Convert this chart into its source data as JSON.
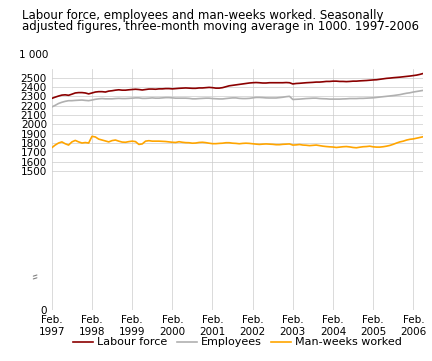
{
  "title_line1": "Labour force, employees and man-weeks worked. Seasonally",
  "title_line2": "adjusted figures, three-month moving average in 1000. 1997-2006",
  "ylabel_top": "1 000",
  "yticks": [
    0,
    1500,
    1600,
    1700,
    1800,
    1900,
    2000,
    2100,
    2200,
    2300,
    2400,
    2500
  ],
  "ymin": 0,
  "ymax": 2600,
  "xtick_labels": [
    "Feb.\n1997",
    "Feb.\n1998",
    "Feb.\n1999",
    "Feb.\n2000",
    "Feb.\n2001",
    "Feb.\n2002",
    "Feb.\n2003",
    "Feb.\n2004",
    "Feb.\n2005",
    "Feb.\n2006"
  ],
  "labour_force": [
    2280,
    2293,
    2305,
    2315,
    2318,
    2313,
    2325,
    2338,
    2342,
    2342,
    2338,
    2328,
    2338,
    2348,
    2352,
    2352,
    2348,
    2358,
    2362,
    2368,
    2372,
    2368,
    2368,
    2372,
    2375,
    2378,
    2375,
    2370,
    2375,
    2380,
    2380,
    2378,
    2382,
    2382,
    2385,
    2385,
    2382,
    2385,
    2388,
    2390,
    2392,
    2390,
    2388,
    2388,
    2392,
    2392,
    2395,
    2398,
    2395,
    2390,
    2390,
    2395,
    2405,
    2415,
    2420,
    2425,
    2430,
    2435,
    2440,
    2445,
    2448,
    2450,
    2448,
    2445,
    2445,
    2448,
    2448,
    2448,
    2448,
    2448,
    2450,
    2448,
    2435,
    2440,
    2442,
    2445,
    2448,
    2450,
    2452,
    2455,
    2455,
    2458,
    2462,
    2462,
    2465,
    2465,
    2462,
    2462,
    2460,
    2462,
    2465,
    2465,
    2468,
    2470,
    2472,
    2475,
    2478,
    2480,
    2485,
    2490,
    2495,
    2498,
    2502,
    2505,
    2508,
    2512,
    2516,
    2520,
    2525,
    2530,
    2538,
    2548
  ],
  "employees": [
    2188,
    2205,
    2225,
    2238,
    2248,
    2255,
    2255,
    2258,
    2260,
    2262,
    2258,
    2255,
    2262,
    2270,
    2275,
    2278,
    2275,
    2275,
    2275,
    2278,
    2280,
    2278,
    2278,
    2280,
    2282,
    2285,
    2285,
    2280,
    2280,
    2282,
    2285,
    2282,
    2282,
    2285,
    2288,
    2288,
    2285,
    2282,
    2282,
    2282,
    2282,
    2280,
    2275,
    2275,
    2278,
    2280,
    2282,
    2282,
    2278,
    2276,
    2274,
    2274,
    2278,
    2282,
    2285,
    2285,
    2280,
    2278,
    2278,
    2280,
    2285,
    2290,
    2290,
    2288,
    2285,
    2284,
    2284,
    2284,
    2288,
    2292,
    2298,
    2302,
    2268,
    2270,
    2272,
    2275,
    2278,
    2280,
    2282,
    2282,
    2278,
    2276,
    2275,
    2272,
    2272,
    2272,
    2272,
    2274,
    2275,
    2278,
    2278,
    2278,
    2280,
    2280,
    2282,
    2284,
    2286,
    2290,
    2294,
    2298,
    2302,
    2306,
    2310,
    2315,
    2320,
    2328,
    2335,
    2340,
    2348,
    2354,
    2360,
    2366
  ],
  "man_weeks": [
    1750,
    1778,
    1800,
    1812,
    1792,
    1778,
    1812,
    1828,
    1812,
    1800,
    1805,
    1800,
    1872,
    1865,
    1842,
    1832,
    1822,
    1812,
    1826,
    1832,
    1820,
    1810,
    1808,
    1815,
    1820,
    1815,
    1785,
    1790,
    1820,
    1825,
    1820,
    1820,
    1820,
    1818,
    1816,
    1812,
    1808,
    1806,
    1814,
    1808,
    1804,
    1803,
    1798,
    1800,
    1806,
    1808,
    1804,
    1798,
    1793,
    1793,
    1796,
    1798,
    1803,
    1803,
    1798,
    1796,
    1792,
    1796,
    1798,
    1796,
    1792,
    1788,
    1785,
    1788,
    1790,
    1788,
    1786,
    1782,
    1782,
    1786,
    1788,
    1790,
    1778,
    1780,
    1784,
    1778,
    1776,
    1772,
    1775,
    1778,
    1772,
    1766,
    1762,
    1759,
    1757,
    1752,
    1756,
    1760,
    1762,
    1758,
    1752,
    1749,
    1755,
    1760,
    1762,
    1766,
    1759,
    1756,
    1756,
    1760,
    1766,
    1774,
    1786,
    1800,
    1812,
    1820,
    1832,
    1840,
    1844,
    1852,
    1860,
    1868
  ],
  "labour_force_color": "#8B0000",
  "employees_color": "#B0B0B0",
  "man_weeks_color": "#FFA500",
  "background_color": "#ffffff",
  "grid_color": "#cccccc",
  "legend_labels": [
    "Labour force",
    "Employees",
    "Man-weeks worked"
  ],
  "title_fontsize": 8.5,
  "legend_fontsize": 8,
  "axis_fontsize": 7.5
}
